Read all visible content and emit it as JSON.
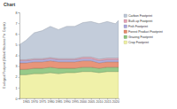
{
  "chart_data": {
    "type": "area",
    "stacked": true,
    "title": "Chart",
    "y_label": "Ecological Footprint (Global Hectares Per Capita)",
    "x": [
      1961,
      1965,
      1970,
      1975,
      1980,
      1985,
      1990,
      1995,
      2000,
      2005,
      2010,
      2015,
      2020,
      2022
    ],
    "series": [
      {
        "name": "Crop Footprint",
        "color": "#eef0a0",
        "values": [
          2.2,
          2.2,
          2.3,
          2.3,
          2.4,
          2.3,
          2.4,
          2.4,
          2.5,
          2.5,
          2.4,
          2.5,
          2.5,
          2.5
        ]
      },
      {
        "name": "Grazing Footprint",
        "color": "#8cc47c",
        "values": [
          0.5,
          0.5,
          0.5,
          0.5,
          0.5,
          0.5,
          0.4,
          0.4,
          0.4,
          0.4,
          0.4,
          0.4,
          0.4,
          0.4
        ]
      },
      {
        "name": "Forest Product Footprint",
        "color": "#e58a6a",
        "values": [
          0.6,
          0.6,
          0.6,
          0.6,
          0.6,
          0.6,
          0.6,
          0.6,
          0.6,
          0.6,
          0.5,
          0.5,
          0.5,
          0.5
        ]
      },
      {
        "name": "Fish Footprint",
        "color": "#a9a6dc",
        "values": [
          0.2,
          0.2,
          0.2,
          0.2,
          0.2,
          0.2,
          0.2,
          0.2,
          0.2,
          0.2,
          0.2,
          0.2,
          0.2,
          0.2
        ]
      },
      {
        "name": "Built-up Footprint",
        "color": "#e3a2b4",
        "values": [
          0.1,
          0.1,
          0.1,
          0.1,
          0.1,
          0.1,
          0.1,
          0.1,
          0.15,
          0.15,
          0.15,
          0.15,
          0.15,
          0.15
        ]
      },
      {
        "name": "Carbon Footprint",
        "color": "#bcc6d6",
        "values": [
          1.4,
          1.8,
          2.4,
          2.6,
          2.9,
          2.7,
          3.0,
          3.0,
          3.2,
          3.3,
          3.3,
          3.4,
          3.2,
          3.5
        ]
      }
    ],
    "xlim": [
      1961,
      2022
    ],
    "xticks": [
      1965,
      1970,
      1975,
      1980,
      1985,
      1990,
      1995,
      2000,
      2005,
      2010,
      2015,
      2020
    ],
    "ylim": [
      0,
      8
    ],
    "yticks": [
      0,
      1,
      2,
      3,
      4,
      5,
      6,
      7,
      8
    ],
    "grid": false,
    "legend": "right"
  }
}
